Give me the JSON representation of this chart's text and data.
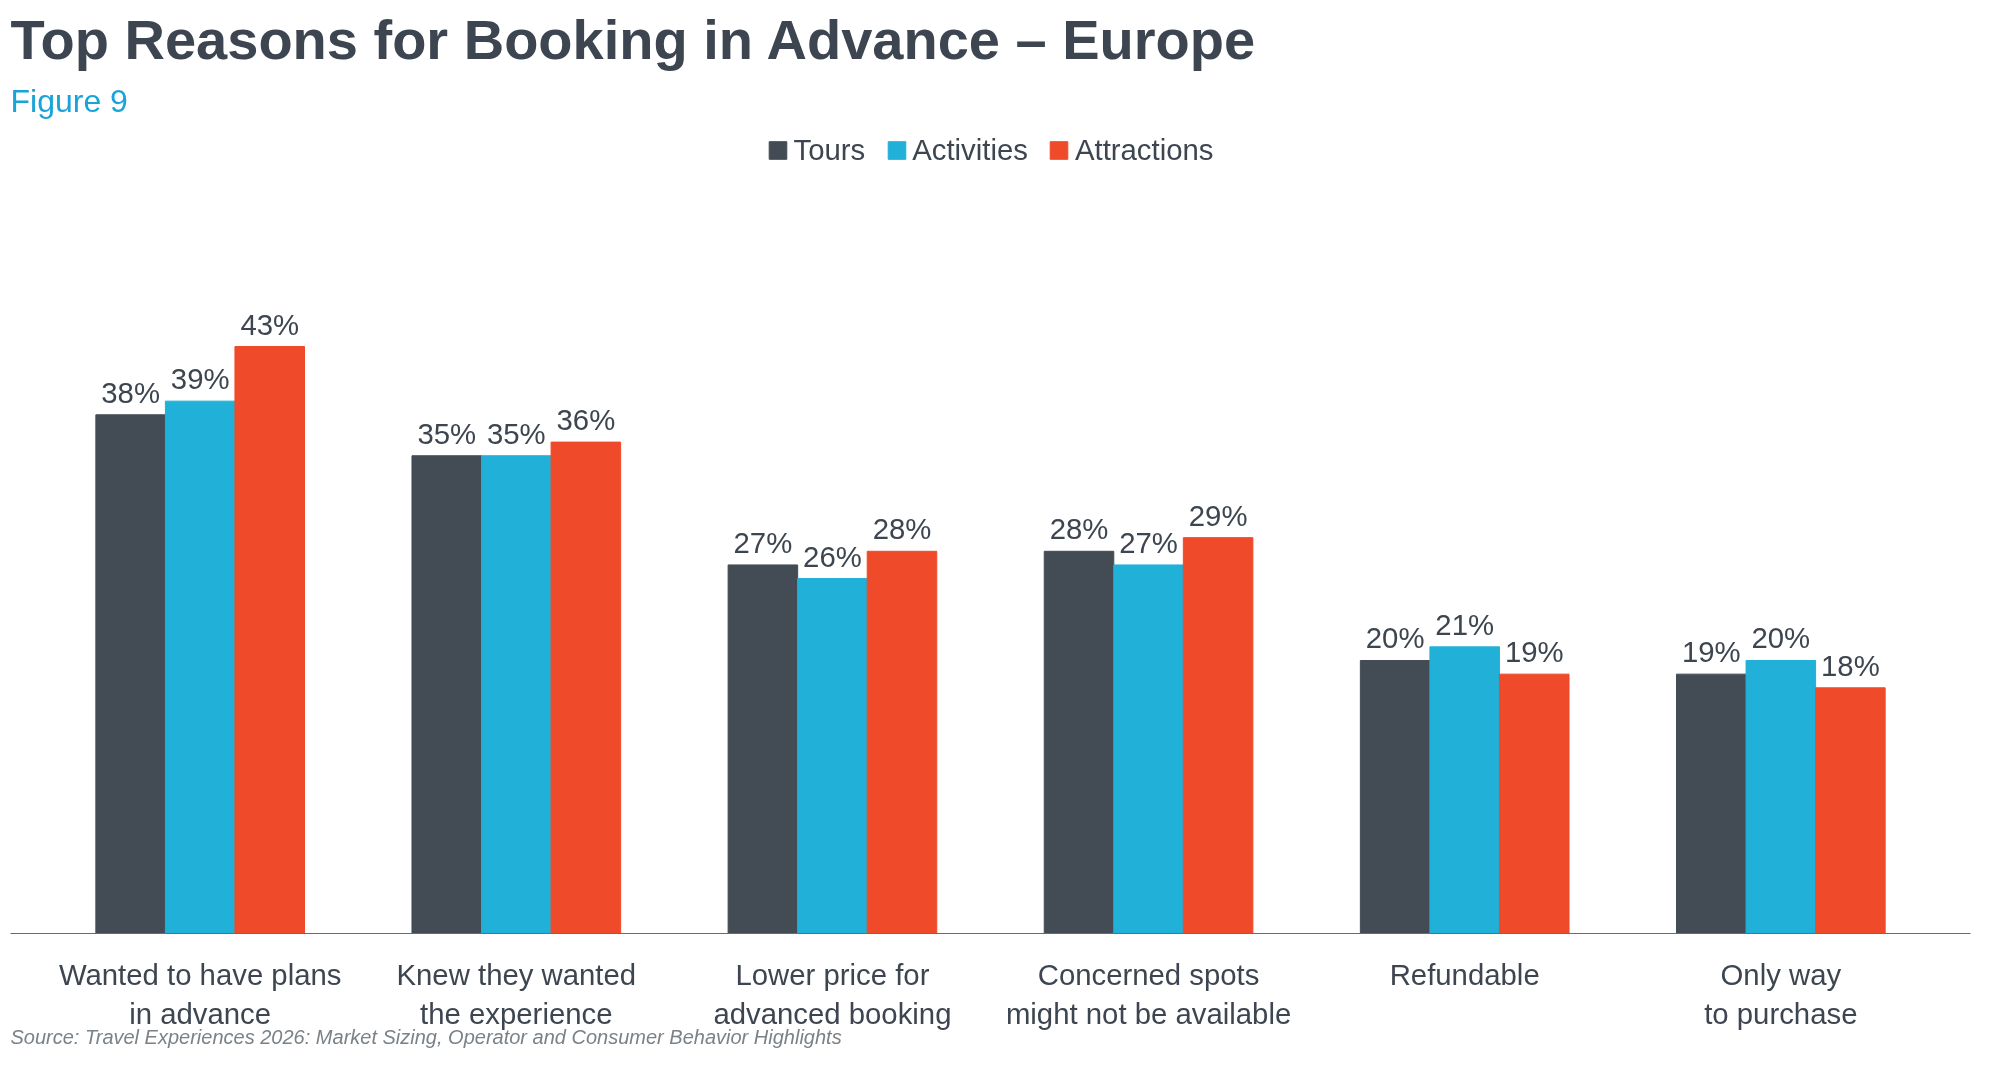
{
  "chart_data": {
    "type": "bar",
    "title": "Top Reasons for Booking in Advance  – Europe",
    "subtitle": "Figure 9",
    "categories": [
      "Wanted to have plans\nin advance",
      "Knew they wanted\nthe experience",
      "Lower price for\nadvanced booking",
      "Concerned spots\nmight not be available",
      "Refundable",
      "Only way\nto purchase"
    ],
    "series": [
      {
        "name": "Tours",
        "color": "#434c54",
        "values": [
          38,
          35,
          27,
          28,
          20,
          19
        ],
        "value_labels": [
          "38%",
          "35%",
          "27%",
          "28%",
          "20%",
          "19%"
        ]
      },
      {
        "name": "Activities",
        "color": "#20b0d8",
        "values": [
          39,
          35,
          26,
          27,
          21,
          20
        ],
        "value_labels": [
          "39%",
          "35%",
          "26%",
          "27%",
          "21%",
          "20%"
        ]
      },
      {
        "name": "Attractions",
        "color": "#ef4a2a",
        "values": [
          43,
          36,
          28,
          29,
          19,
          18
        ],
        "value_labels": [
          "43%",
          "36%",
          "28%",
          "29%",
          "19%",
          "18%"
        ]
      }
    ],
    "legend": "top",
    "grid": false,
    "annotations": [
      "Source: Travel Experiences 2026: Market Sizing, Operator and Consumer Behavior Highlights"
    ]
  }
}
